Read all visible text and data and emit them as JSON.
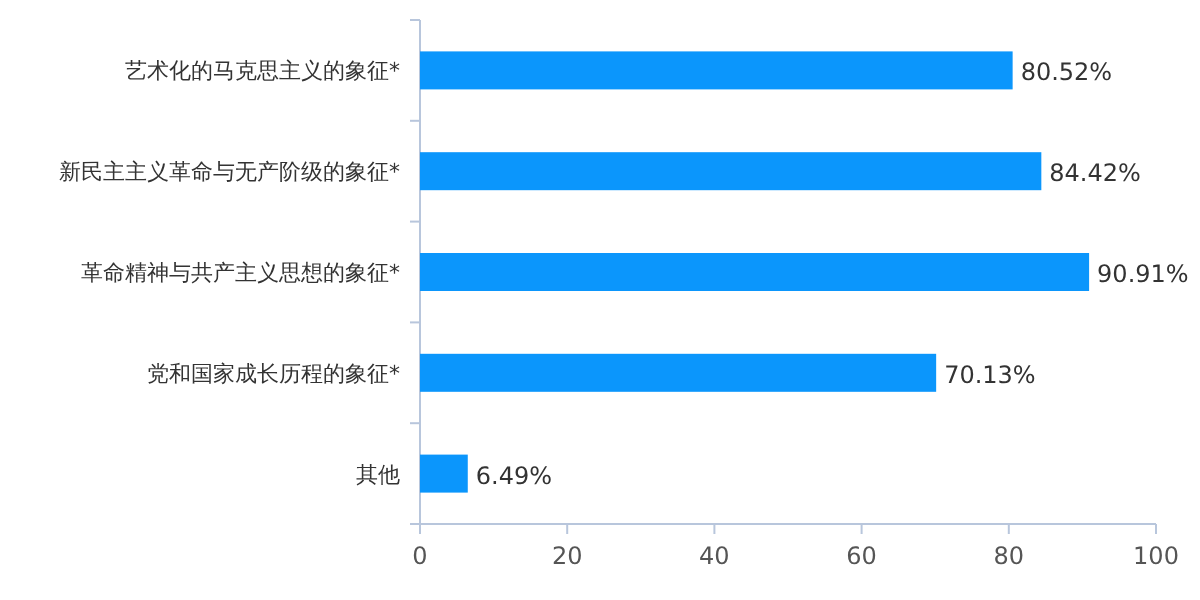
{
  "chart_data": {
    "type": "bar",
    "orientation": "horizontal",
    "categories": [
      "艺术化的马克思主义的象征*",
      "新民主主义革命与无产阶级的象征*",
      "革命精神与共产主义思想的象征*",
      "党和国家成长历程的象征*",
      "其他"
    ],
    "values": [
      80.52,
      84.42,
      90.91,
      70.13,
      6.49
    ],
    "value_labels": [
      "80.52%",
      "84.42%",
      "90.91%",
      "70.13%",
      "6.49%"
    ],
    "color": "#0b96fc",
    "xlim": [
      0,
      100
    ],
    "xticks": [
      0,
      20,
      40,
      60,
      80,
      100
    ],
    "grid": false
  }
}
